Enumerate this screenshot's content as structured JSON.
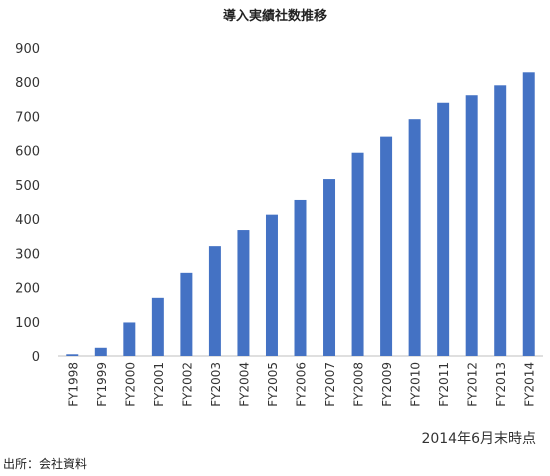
{
  "chart_data": {
    "type": "bar",
    "title": "導入実績社数推移",
    "categories": [
      "FY1998",
      "FY1999",
      "FY2000",
      "FY2001",
      "FY2002",
      "FY2003",
      "FY2004",
      "FY2005",
      "FY2006",
      "FY2007",
      "FY2008",
      "FY2009",
      "FY2010",
      "FY2011",
      "FY2012",
      "FY2013",
      "FY2014"
    ],
    "values": [
      5,
      24,
      98,
      170,
      243,
      321,
      368,
      413,
      456,
      517,
      594,
      641,
      692,
      740,
      762,
      791,
      829
    ],
    "ylim": [
      0,
      900
    ],
    "yticks": [
      0,
      100,
      200,
      300,
      400,
      500,
      600,
      700,
      800,
      900
    ],
    "xlabel": "",
    "ylabel": "",
    "grid": false,
    "bar_color": "#4472c4"
  },
  "annotation": "2014年6月末時点",
  "source": "出所：会社資料"
}
